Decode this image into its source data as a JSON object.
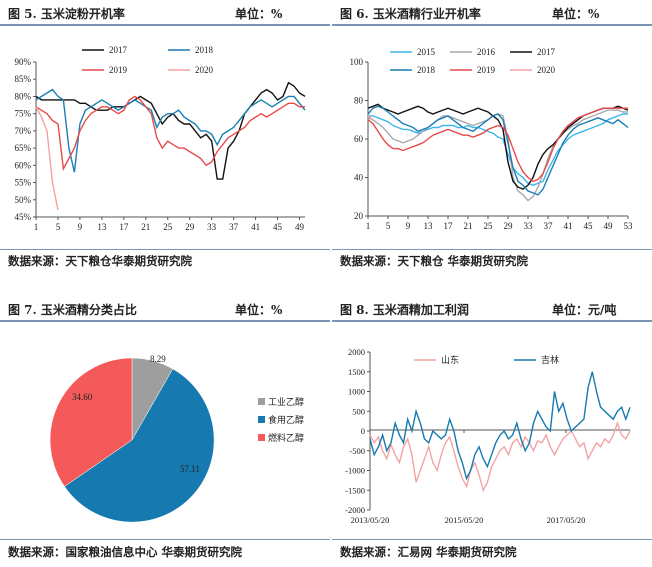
{
  "panels": [
    {
      "title": "图 5. 玉米淀粉开机率",
      "unit": "单位：%",
      "source": "数据来源：天下粮仓华泰期货研究院"
    },
    {
      "title": "图 6. 玉米酒精行业开机率",
      "unit": "单位：%",
      "source": "数据来源：天下粮仓 华泰期货研究院"
    },
    {
      "title": "图 7. 玉米酒精分类占比",
      "unit": "单位：%",
      "source": "数据来源：国家粮油信息中心 华泰期货研究院"
    },
    {
      "title": "图 8. 玉米酒精加工利润",
      "unit": "单位：元/吨",
      "source": "数据来源：汇易网 华泰期货研究院"
    }
  ],
  "chart_data": [
    {
      "type": "line",
      "x_ticks": [
        "1",
        "5",
        "9",
        "13",
        "17",
        "21",
        "25",
        "29",
        "33",
        "37",
        "41",
        "45",
        "49"
      ],
      "y_ticks": [
        "45%",
        "50%",
        "55%",
        "60%",
        "65%",
        "70%",
        "75%",
        "80%",
        "85%",
        "90%"
      ],
      "ylim": [
        45,
        90
      ],
      "series": [
        {
          "name": "2017",
          "color": "#111111",
          "values": [
            80,
            79,
            79,
            79,
            79,
            79,
            79,
            79,
            78,
            78,
            77,
            76,
            76,
            76,
            77,
            77,
            77,
            78,
            79,
            80,
            79,
            78,
            75,
            72,
            74,
            75,
            73,
            72,
            72,
            70,
            68,
            69,
            67,
            56,
            56,
            65,
            67,
            70,
            75,
            77,
            79,
            81,
            82,
            81,
            79,
            80,
            84,
            83,
            81,
            80
          ]
        },
        {
          "name": "2018",
          "color": "#1a7fb5",
          "values": [
            79,
            80,
            81,
            82,
            80,
            79,
            65,
            58,
            72,
            76,
            77,
            78,
            79,
            78,
            77,
            76,
            77,
            78,
            79,
            78,
            77,
            76,
            71,
            74,
            75,
            75,
            76,
            74,
            73,
            72,
            70,
            70,
            69,
            66,
            69,
            70,
            71,
            73,
            75,
            77,
            78,
            79,
            78,
            77,
            78,
            79,
            80,
            80,
            78,
            76
          ]
        },
        {
          "name": "2019",
          "color": "#e84a4a",
          "values": [
            77,
            76,
            75,
            73,
            72,
            59,
            62,
            65,
            70,
            73,
            75,
            76,
            77,
            77,
            76,
            75,
            76,
            79,
            80,
            79,
            77,
            75,
            68,
            65,
            67,
            66,
            65,
            65,
            64,
            63,
            62,
            60,
            61,
            64,
            66,
            68,
            69,
            70,
            71,
            73,
            74,
            75,
            74,
            75,
            76,
            77,
            78,
            78,
            77,
            77
          ]
        },
        {
          "name": "2020",
          "color": "#f4a3a3",
          "values": [
            77,
            74,
            70,
            55,
            47
          ]
        }
      ]
    },
    {
      "type": "line",
      "x_ticks": [
        "1",
        "5",
        "9",
        "13",
        "17",
        "21",
        "25",
        "29",
        "33",
        "37",
        "41",
        "45",
        "49",
        "53"
      ],
      "y_ticks": [
        "20",
        "40",
        "60",
        "80",
        "100"
      ],
      "ylim": [
        20,
        100
      ],
      "series": [
        {
          "name": "2015",
          "color": "#3fb6e8",
          "values": [
            72,
            72,
            71,
            70,
            69,
            67,
            66,
            65,
            65,
            64,
            63,
            64,
            65,
            66,
            66,
            67,
            67,
            67,
            66,
            66,
            67,
            66,
            66,
            65,
            64,
            63,
            61,
            60,
            52,
            45,
            42,
            40,
            37,
            36,
            37,
            38,
            44,
            49,
            54,
            57,
            60,
            62,
            63,
            64,
            65,
            66,
            67,
            68,
            70,
            71,
            72,
            73,
            73
          ]
        },
        {
          "name": "2016",
          "color": "#aaaaaa",
          "values": [
            71,
            70,
            68,
            66,
            63,
            60,
            59,
            58,
            59,
            60,
            62,
            64,
            66,
            68,
            70,
            72,
            72,
            71,
            70,
            69,
            68,
            67,
            68,
            69,
            70,
            72,
            73,
            72,
            60,
            40,
            33,
            31,
            28,
            30,
            35,
            42,
            50,
            56,
            60,
            63,
            65,
            67,
            68,
            70,
            71,
            72,
            73,
            74,
            75,
            75,
            75,
            74,
            74
          ]
        },
        {
          "name": "2017",
          "color": "#111111",
          "values": [
            76,
            77,
            78,
            76,
            75,
            74,
            73,
            74,
            75,
            76,
            77,
            76,
            74,
            73,
            74,
            75,
            76,
            75,
            74,
            73,
            74,
            75,
            76,
            75,
            74,
            72,
            70,
            65,
            48,
            38,
            35,
            34,
            36,
            40,
            47,
            52,
            55,
            57,
            60,
            63,
            66,
            68,
            70,
            72,
            73,
            74,
            75,
            76,
            76,
            76,
            77,
            76,
            75
          ]
        },
        {
          "name": "2018",
          "color": "#1a7fb5",
          "values": [
            73,
            76,
            77,
            76,
            74,
            72,
            70,
            68,
            67,
            66,
            64,
            65,
            66,
            68,
            70,
            71,
            72,
            70,
            68,
            66,
            65,
            64,
            66,
            68,
            70,
            72,
            73,
            70,
            58,
            45,
            38,
            36,
            33,
            32,
            31,
            34,
            40,
            46,
            52,
            58,
            62,
            65,
            67,
            68,
            69,
            70,
            71,
            70,
            69,
            68,
            70,
            68,
            66
          ]
        },
        {
          "name": "2019",
          "color": "#e84a4a",
          "values": [
            70,
            68,
            64,
            60,
            57,
            55,
            55,
            54,
            55,
            56,
            57,
            58,
            60,
            62,
            63,
            64,
            65,
            64,
            63,
            62,
            62,
            61,
            62,
            63,
            65,
            66,
            67,
            66,
            62,
            55,
            48,
            43,
            40,
            38,
            39,
            42,
            48,
            55,
            60,
            64,
            67,
            69,
            71,
            72,
            73,
            74,
            75,
            76,
            76,
            76,
            76,
            76,
            76
          ]
        },
        {
          "name": "2020",
          "color": "#f4a3a3",
          "values": [
            72,
            70
          ]
        }
      ]
    },
    {
      "type": "pie",
      "slices": [
        {
          "name": "工业乙醇",
          "label": "8.29",
          "value": 8.29,
          "color": "#9e9e9e"
        },
        {
          "name": "食用乙醇",
          "label": "57.11",
          "value": 57.11,
          "color": "#1679b0"
        },
        {
          "name": "燃料乙醇",
          "label": "34.60",
          "value": 34.6,
          "color": "#f45a5a"
        }
      ]
    },
    {
      "type": "line",
      "x_ticks": [
        "2013/05/20",
        "2015/05/20",
        "2017/05/20"
      ],
      "y_ticks": [
        "-2000",
        "-1500",
        "-1000",
        "-500",
        "0",
        "500",
        "1000",
        "1500",
        "2000"
      ],
      "ylim": [
        -2000,
        2000
      ],
      "series": [
        {
          "name": "山东",
          "color": "#f4a3a3",
          "values": [
            -100,
            -300,
            -150,
            -500,
            -700,
            -350,
            -600,
            -800,
            -400,
            -200,
            -600,
            -1300,
            -1000,
            -700,
            -400,
            -800,
            -1000,
            -600,
            -300,
            -150,
            -500,
            -900,
            -1200,
            -1400,
            -1000,
            -800,
            -1100,
            -1500,
            -1300,
            -900,
            -700,
            -500,
            -400,
            -600,
            -300,
            -200,
            -400,
            -150,
            -300,
            -500,
            -250,
            -300,
            -100,
            -400,
            -600,
            -400,
            -200,
            -100,
            0,
            -200,
            -400,
            -300,
            -700,
            -500,
            -300,
            -400,
            -200,
            -300,
            -100,
            200,
            -100,
            -200,
            0
          ]
        },
        {
          "name": "吉林",
          "color": "#1679b0",
          "values": [
            -200,
            -600,
            -400,
            -100,
            -500,
            -300,
            200,
            -100,
            -300,
            300,
            0,
            500,
            200,
            -200,
            -300,
            0,
            -100,
            -200,
            -100,
            300,
            0,
            -500,
            -800,
            -1200,
            -1000,
            -600,
            -400,
            -700,
            -900,
            -600,
            -300,
            -100,
            0,
            -200,
            -100,
            200,
            -200,
            -500,
            -300,
            200,
            500,
            300,
            100,
            0,
            1000,
            500,
            700,
            300,
            0,
            100,
            200,
            300,
            1100,
            1500,
            1000,
            600,
            500,
            400,
            300,
            500,
            600,
            300,
            600
          ]
        }
      ]
    }
  ]
}
